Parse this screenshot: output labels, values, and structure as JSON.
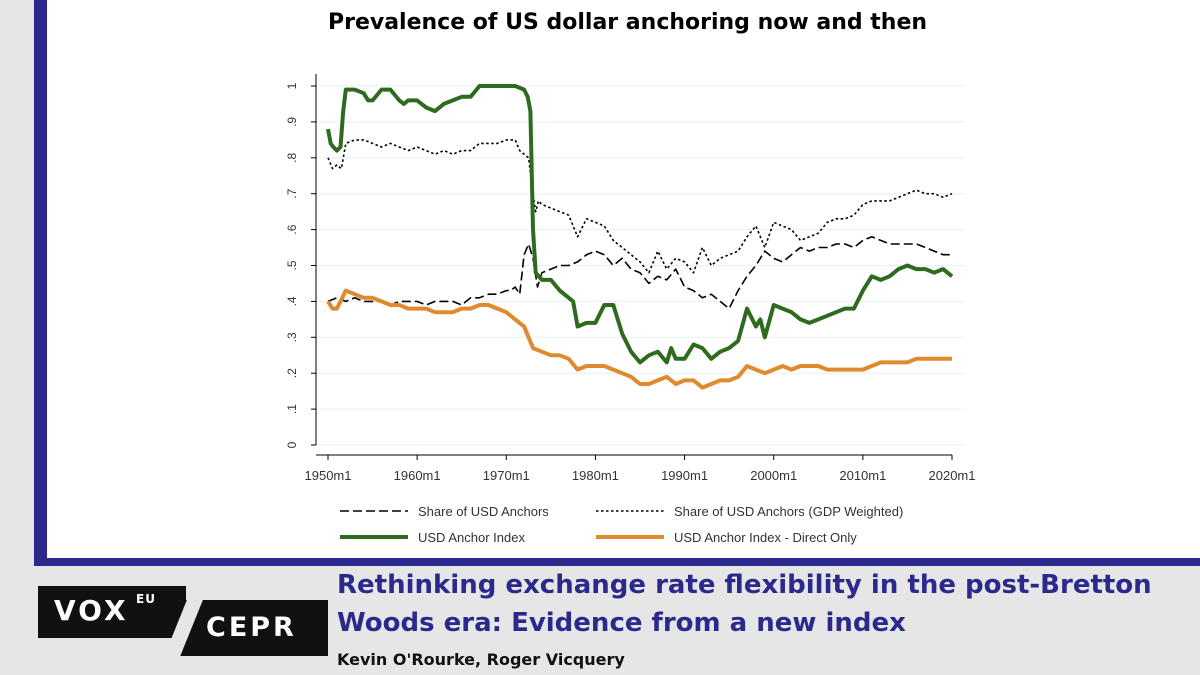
{
  "chart_data": {
    "type": "line",
    "title": "Prevalence of US dollar anchoring now and then",
    "xlabel": "",
    "ylabel": "",
    "xlim": [
      1950,
      2020
    ],
    "ylim": [
      0,
      1
    ],
    "grid": "horizontal",
    "legend_placement": "bottom",
    "x_tick_labels": [
      "1950m1",
      "1960m1",
      "1970m1",
      "1980m1",
      "1990m1",
      "2000m1",
      "2010m1",
      "2020m1"
    ],
    "x_tick_values": [
      1950,
      1960,
      1970,
      1980,
      1990,
      2000,
      2010,
      2020
    ],
    "y_tick_labels": [
      "0",
      ".1",
      ".2",
      ".3",
      ".4",
      ".5",
      ".6",
      ".7",
      ".8",
      ".9",
      "1"
    ],
    "y_tick_values": [
      0,
      0.1,
      0.2,
      0.3,
      0.4,
      0.5,
      0.6,
      0.7,
      0.8,
      0.9,
      1.0
    ],
    "series": [
      {
        "name": "Share of USD Anchors",
        "style": "dashed",
        "color": "#000000",
        "x": [
          1950,
          1951,
          1952,
          1953,
          1954,
          1955,
          1956,
          1957,
          1958,
          1959,
          1960,
          1961,
          1962,
          1963,
          1964,
          1965,
          1966,
          1967,
          1968,
          1969,
          1970,
          1970.5,
          1971,
          1971.5,
          1972,
          1972.5,
          1973,
          1973.5,
          1974,
          1975,
          1976,
          1977,
          1978,
          1979,
          1980,
          1981,
          1982,
          1983,
          1984,
          1985,
          1986,
          1987,
          1988,
          1989,
          1990,
          1991,
          1992,
          1993,
          1994,
          1995,
          1996,
          1997,
          1998,
          1999,
          2000,
          2001,
          2002,
          2003,
          2004,
          2005,
          2006,
          2007,
          2008,
          2009,
          2010,
          2011,
          2012,
          2013,
          2014,
          2015,
          2016,
          2017,
          2018,
          2019,
          2020
        ],
        "values": [
          0.4,
          0.41,
          0.4,
          0.41,
          0.4,
          0.4,
          0.4,
          0.39,
          0.4,
          0.4,
          0.4,
          0.39,
          0.4,
          0.4,
          0.4,
          0.39,
          0.41,
          0.41,
          0.42,
          0.42,
          0.43,
          0.43,
          0.44,
          0.42,
          0.53,
          0.56,
          0.52,
          0.44,
          0.48,
          0.49,
          0.5,
          0.5,
          0.51,
          0.53,
          0.54,
          0.53,
          0.5,
          0.52,
          0.49,
          0.48,
          0.45,
          0.47,
          0.46,
          0.49,
          0.44,
          0.43,
          0.41,
          0.42,
          0.4,
          0.38,
          0.43,
          0.47,
          0.5,
          0.54,
          0.52,
          0.51,
          0.53,
          0.55,
          0.54,
          0.55,
          0.55,
          0.56,
          0.56,
          0.55,
          0.57,
          0.58,
          0.57,
          0.56,
          0.56,
          0.56,
          0.56,
          0.55,
          0.54,
          0.53,
          0.53
        ]
      },
      {
        "name": "Share of USD Anchors (GDP Weighted)",
        "style": "dotted",
        "color": "#000000",
        "x": [
          1950,
          1950.5,
          1951,
          1951.5,
          1952,
          1953,
          1954,
          1955,
          1956,
          1957,
          1958,
          1959,
          1960,
          1961,
          1962,
          1963,
          1964,
          1965,
          1966,
          1967,
          1968,
          1969,
          1970,
          1971,
          1971.5,
          1972,
          1972.5,
          1973,
          1973.3,
          1973.6,
          1974,
          1975,
          1976,
          1977,
          1978,
          1979,
          1980,
          1981,
          1982,
          1983,
          1984,
          1985,
          1986,
          1987,
          1988,
          1989,
          1990,
          1991,
          1992,
          1993,
          1994,
          1995,
          1996,
          1997,
          1998,
          1999,
          2000,
          2001,
          2002,
          2003,
          2004,
          2005,
          2006,
          2007,
          2008,
          2009,
          2010,
          2011,
          2012,
          2013,
          2014,
          2015,
          2016,
          2017,
          2018,
          2019,
          2020
        ],
        "values": [
          0.8,
          0.77,
          0.78,
          0.77,
          0.84,
          0.85,
          0.85,
          0.84,
          0.83,
          0.84,
          0.83,
          0.82,
          0.83,
          0.82,
          0.81,
          0.82,
          0.81,
          0.82,
          0.82,
          0.84,
          0.84,
          0.84,
          0.85,
          0.85,
          0.82,
          0.81,
          0.8,
          0.7,
          0.65,
          0.68,
          0.67,
          0.66,
          0.65,
          0.64,
          0.58,
          0.63,
          0.62,
          0.61,
          0.57,
          0.55,
          0.53,
          0.51,
          0.48,
          0.54,
          0.49,
          0.52,
          0.51,
          0.48,
          0.55,
          0.5,
          0.52,
          0.53,
          0.54,
          0.58,
          0.61,
          0.55,
          0.62,
          0.61,
          0.6,
          0.57,
          0.58,
          0.59,
          0.62,
          0.63,
          0.63,
          0.64,
          0.67,
          0.68,
          0.68,
          0.68,
          0.69,
          0.7,
          0.71,
          0.7,
          0.7,
          0.69,
          0.7
        ]
      },
      {
        "name": "USD Anchor Index",
        "style": "solid",
        "color": "#2f6b1f",
        "x": [
          1950,
          1950.3,
          1950.6,
          1951,
          1951.4,
          1951.7,
          1952,
          1953,
          1954,
          1954.5,
          1955,
          1956,
          1956.5,
          1957,
          1958,
          1958.5,
          1959,
          1960,
          1961,
          1962,
          1963,
          1964,
          1965,
          1966,
          1967,
          1968,
          1969,
          1970,
          1971,
          1972,
          1972.4,
          1972.7,
          1973,
          1973.3,
          1974,
          1975,
          1976,
          1977,
          1977.5,
          1978,
          1979,
          1980,
          1981,
          1982,
          1983,
          1984,
          1985,
          1986,
          1987,
          1988,
          1988.5,
          1989,
          1990,
          1991,
          1992,
          1993,
          1994,
          1995,
          1996,
          1997,
          1998,
          1998.5,
          1999,
          2000,
          2001,
          2002,
          2003,
          2004,
          2005,
          2006,
          2007,
          2008,
          2009,
          2010,
          2011,
          2012,
          2013,
          2014,
          2015,
          2016,
          2017,
          2018,
          2019,
          2020
        ],
        "values": [
          0.88,
          0.84,
          0.83,
          0.82,
          0.83,
          0.93,
          0.99,
          0.99,
          0.98,
          0.96,
          0.96,
          0.99,
          0.99,
          0.99,
          0.96,
          0.95,
          0.96,
          0.96,
          0.94,
          0.93,
          0.95,
          0.96,
          0.97,
          0.97,
          1.0,
          1.0,
          1.0,
          1.0,
          1.0,
          0.99,
          0.97,
          0.93,
          0.6,
          0.48,
          0.46,
          0.46,
          0.43,
          0.41,
          0.4,
          0.33,
          0.34,
          0.34,
          0.39,
          0.39,
          0.31,
          0.26,
          0.23,
          0.25,
          0.26,
          0.23,
          0.27,
          0.24,
          0.24,
          0.28,
          0.27,
          0.24,
          0.26,
          0.27,
          0.29,
          0.38,
          0.33,
          0.35,
          0.3,
          0.39,
          0.38,
          0.37,
          0.35,
          0.34,
          0.35,
          0.36,
          0.37,
          0.38,
          0.38,
          0.43,
          0.47,
          0.46,
          0.47,
          0.49,
          0.5,
          0.49,
          0.49,
          0.48,
          0.49,
          0.47
        ]
      },
      {
        "name": "USD Anchor Index - Direct Only",
        "style": "solid",
        "color": "#e08a2e",
        "x": [
          1950,
          1950.5,
          1951,
          1952,
          1953,
          1954,
          1955,
          1956,
          1957,
          1958,
          1959,
          1960,
          1961,
          1962,
          1963,
          1964,
          1965,
          1966,
          1967,
          1968,
          1969,
          1970,
          1971,
          1972,
          1973,
          1974,
          1975,
          1976,
          1977,
          1978,
          1979,
          1980,
          1981,
          1982,
          1983,
          1984,
          1985,
          1986,
          1987,
          1988,
          1989,
          1990,
          1991,
          1992,
          1993,
          1994,
          1995,
          1996,
          1997,
          1998,
          1999,
          2000,
          2001,
          2002,
          2003,
          2004,
          2005,
          2006,
          2007,
          2008,
          2009,
          2010,
          2011,
          2012,
          2013,
          2014,
          2015,
          2016,
          2017,
          2018,
          2019,
          2020
        ],
        "values": [
          0.4,
          0.38,
          0.38,
          0.43,
          0.42,
          0.41,
          0.41,
          0.4,
          0.39,
          0.39,
          0.38,
          0.38,
          0.38,
          0.37,
          0.37,
          0.37,
          0.38,
          0.38,
          0.39,
          0.39,
          0.38,
          0.37,
          0.35,
          0.33,
          0.27,
          0.26,
          0.25,
          0.25,
          0.24,
          0.21,
          0.22,
          0.22,
          0.22,
          0.21,
          0.2,
          0.19,
          0.17,
          0.17,
          0.18,
          0.19,
          0.17,
          0.18,
          0.18,
          0.16,
          0.17,
          0.18,
          0.18,
          0.19,
          0.22,
          0.21,
          0.2,
          0.21,
          0.22,
          0.21,
          0.22,
          0.22,
          0.22,
          0.21,
          0.21,
          0.21,
          0.21,
          0.21,
          0.22,
          0.23,
          0.23,
          0.23,
          0.23,
          0.24,
          0.24,
          0.24,
          0.24,
          0.24
        ]
      }
    ]
  },
  "footer": {
    "logo_vox": "VOX",
    "logo_eu": "EU",
    "logo_cepr": "CEPR",
    "article_title": "Rethinking exchange rate flexibility in the post-Bretton Woods era: Evidence from a new index",
    "authors": "Kevin O'Rourke, Roger Vicquery"
  }
}
